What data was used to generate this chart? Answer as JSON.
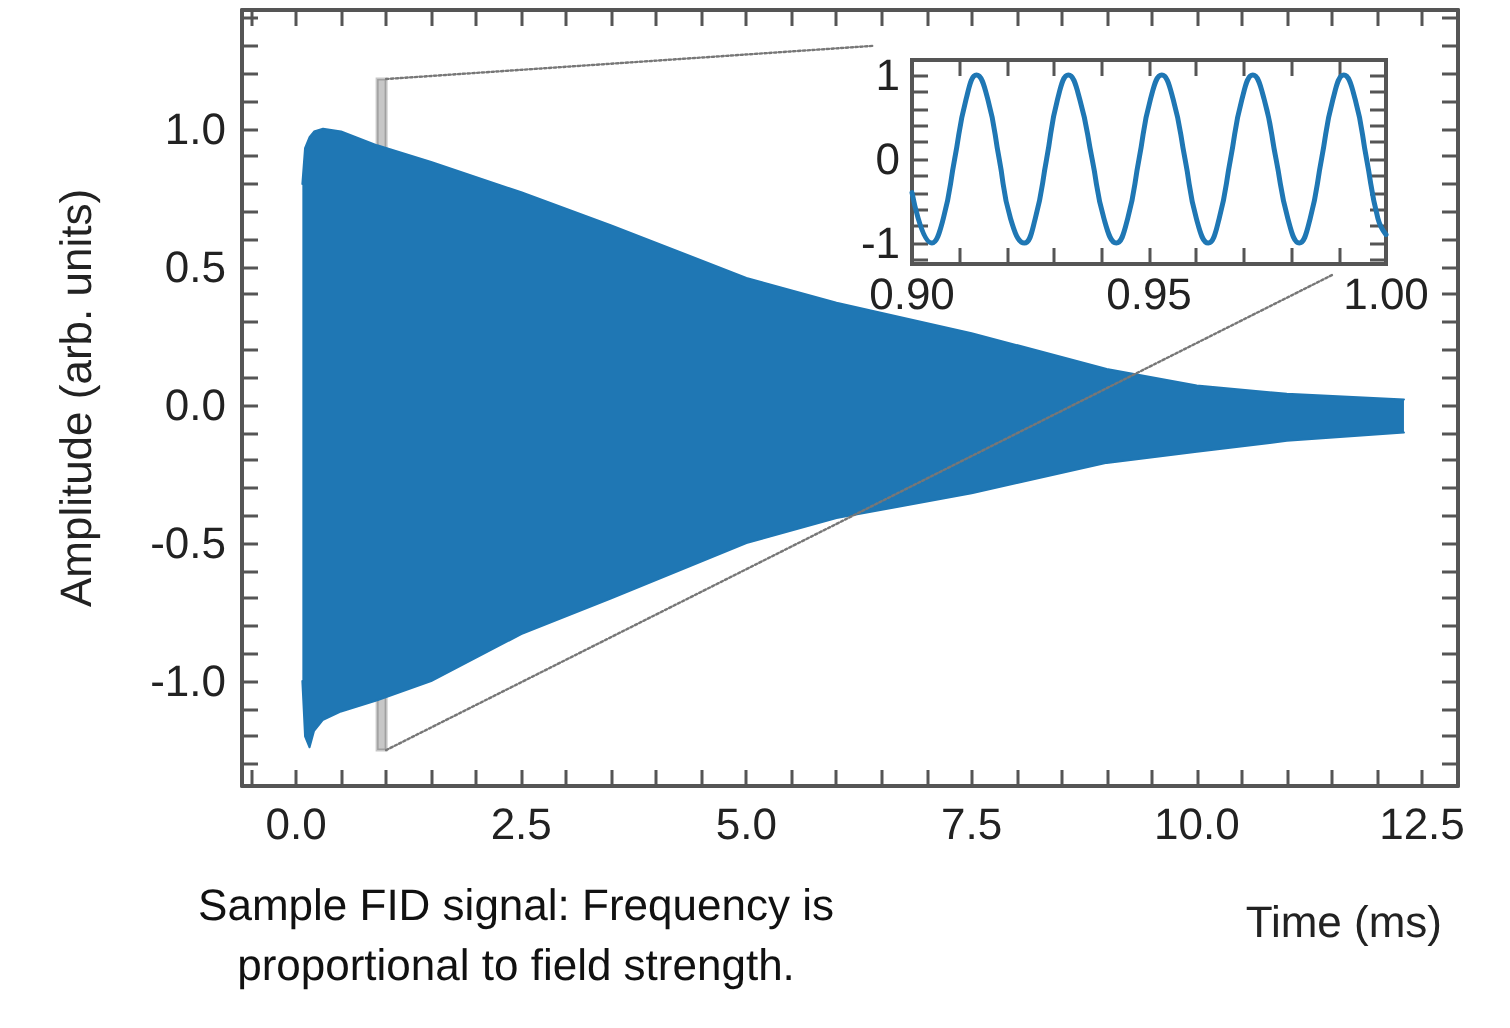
{
  "chart_data": [
    {
      "type": "area",
      "xlabel": "Time (ms)",
      "ylabel": "Amplitude (arb. units)",
      "annotations": [
        "Sample FID signal: Frequency is proportional to field strength."
      ],
      "x": [
        0.07,
        0.1,
        0.15,
        0.2,
        0.3,
        0.5,
        0.9,
        1.5,
        2.5,
        3.5,
        5.0,
        6.0,
        7.5,
        9.0,
        10.0,
        11.0,
        12.3
      ],
      "series": [
        {
          "color": "#1f77b4",
          "values": [
            0.8,
            0.93,
            0.97,
            0.99,
            1.0,
            0.99,
            0.94,
            0.88,
            0.77,
            0.65,
            0.46,
            0.37,
            0.26,
            0.13,
            0.07,
            0.04,
            0.02
          ]
        },
        {
          "color": "#1f77b4",
          "values": [
            -1.0,
            -1.2,
            -1.24,
            -1.18,
            -1.14,
            -1.11,
            -1.07,
            -1.0,
            -0.83,
            -0.7,
            -0.5,
            -0.41,
            -0.32,
            -0.21,
            -0.17,
            -0.13,
            -0.1
          ]
        },
        {
          "type": "line",
          "line_style": "dotted",
          "color": "#777777",
          "x": [
            1.0,
            6.4
          ],
          "values": [
            1.18,
            1.3
          ]
        },
        {
          "type": "line",
          "line_style": "dotted",
          "color": "#777777",
          "x": [
            1.0,
            11.5
          ],
          "values": [
            -1.25,
            0.47
          ]
        }
      ],
      "bands": [
        {
          "axis": "x",
          "from": 0.9,
          "to": 1.0,
          "color": "#444444"
        }
      ],
      "xlim": [
        -0.6,
        12.9
      ],
      "ylim": [
        -1.38,
        1.43
      ],
      "xticks": [
        {
          "value": -0.5,
          "label": null
        },
        {
          "value": 0,
          "label": "0.0"
        },
        {
          "value": 0.5,
          "label": null
        },
        {
          "value": 1,
          "label": null
        },
        {
          "value": 1.5,
          "label": null
        },
        {
          "value": 2,
          "label": null
        },
        {
          "value": 2.5,
          "label": "2.5"
        },
        {
          "value": 3,
          "label": null
        },
        {
          "value": 3.5,
          "label": null
        },
        {
          "value": 4,
          "label": null
        },
        {
          "value": 4.5,
          "label": null
        },
        {
          "value": 5,
          "label": "5.0"
        },
        {
          "value": 5.5,
          "label": null
        },
        {
          "value": 6,
          "label": null
        },
        {
          "value": 6.5,
          "label": null
        },
        {
          "value": 7,
          "label": null
        },
        {
          "value": 7.5,
          "label": "7.5"
        },
        {
          "value": 8,
          "label": null
        },
        {
          "value": 8.5,
          "label": null
        },
        {
          "value": 9,
          "label": null
        },
        {
          "value": 9.5,
          "label": null
        },
        {
          "value": 10,
          "label": "10.0"
        },
        {
          "value": 10.5,
          "label": null
        },
        {
          "value": 11,
          "label": null
        },
        {
          "value": 11.5,
          "label": null
        },
        {
          "value": 12,
          "label": null
        },
        {
          "value": 12.5,
          "label": "12.5"
        }
      ],
      "yticks": [
        {
          "value": -1.3,
          "label": null
        },
        {
          "value": -1.2,
          "label": null
        },
        {
          "value": -1.1,
          "label": null
        },
        {
          "value": -1,
          "label": "-1.0"
        },
        {
          "value": -0.9,
          "label": null
        },
        {
          "value": -0.8,
          "label": null
        },
        {
          "value": -0.7,
          "label": null
        },
        {
          "value": -0.6,
          "label": null
        },
        {
          "value": -0.5,
          "label": "-0.5"
        },
        {
          "value": -0.4,
          "label": null
        },
        {
          "value": -0.3,
          "label": null
        },
        {
          "value": -0.2,
          "label": null
        },
        {
          "value": -0.1,
          "label": null
        },
        {
          "value": 0,
          "label": "0.0"
        },
        {
          "value": 0.1,
          "label": null
        },
        {
          "value": 0.2,
          "label": null
        },
        {
          "value": 0.3,
          "label": null
        },
        {
          "value": 0.4,
          "label": null
        },
        {
          "value": 0.5,
          "label": "0.5"
        },
        {
          "value": 0.6,
          "label": null
        },
        {
          "value": 0.7,
          "label": null
        },
        {
          "value": 0.8,
          "label": null
        },
        {
          "value": 0.9,
          "label": null
        },
        {
          "value": 1,
          "label": "1.0"
        },
        {
          "value": 1.1,
          "label": null
        },
        {
          "value": 1.2,
          "label": null
        },
        {
          "value": 1.3,
          "label": null
        },
        {
          "value": 1.4,
          "label": null
        }
      ]
    },
    {
      "type": "line",
      "marker": "none",
      "color": "#1f77b4",
      "x": [
        0.9,
        0.9042,
        0.9066,
        0.909,
        0.9114,
        0.9136,
        0.916,
        0.9184,
        0.9208,
        0.9237,
        0.926,
        0.9284,
        0.9307,
        0.933,
        0.9354,
        0.938,
        0.9405,
        0.9431,
        0.9455,
        0.9479,
        0.9503,
        0.9527,
        0.9551,
        0.9576,
        0.96,
        0.9625,
        0.9648,
        0.9672,
        0.9696,
        0.9719,
        0.9743,
        0.9768,
        0.9793,
        0.9817,
        0.984,
        0.9864,
        0.9888,
        0.9911,
        0.9935,
        0.9959,
        0.9983,
        1.0
      ],
      "values": [
        -0.4,
        -1,
        -0.71,
        0,
        0.71,
        1,
        0.71,
        0,
        -0.71,
        -1,
        -0.71,
        0,
        0.71,
        1,
        0.71,
        0,
        -0.71,
        -1,
        -0.71,
        0,
        0.71,
        1,
        0.71,
        0,
        -0.71,
        -1,
        -0.71,
        0,
        0.71,
        1,
        0.71,
        0,
        -0.71,
        -1,
        -0.71,
        0,
        0.71,
        1,
        0.71,
        0,
        -0.71,
        -0.9
      ],
      "xlim": [
        0.9,
        1.0
      ],
      "ylim": [
        -1.25,
        1.18
      ],
      "xticks": [
        {
          "value": 0.9,
          "label": "0.90"
        },
        {
          "value": 0.91,
          "label": null
        },
        {
          "value": 0.92,
          "label": null
        },
        {
          "value": 0.93,
          "label": null
        },
        {
          "value": 0.94,
          "label": null
        },
        {
          "value": 0.95,
          "label": "0.95"
        },
        {
          "value": 0.96,
          "label": null
        },
        {
          "value": 0.97,
          "label": null
        },
        {
          "value": 0.98,
          "label": null
        },
        {
          "value": 0.99,
          "label": null
        },
        {
          "value": 1.0,
          "label": "1.00"
        }
      ],
      "yticks": [
        {
          "value": -1.2,
          "label": null
        },
        -1,
        {
          "value": -0.8,
          "label": null
        },
        {
          "value": -0.6,
          "label": null
        },
        {
          "value": -0.4,
          "label": null
        },
        {
          "value": -0.2,
          "label": null
        },
        0,
        {
          "value": 0.2,
          "label": null
        },
        {
          "value": 0.4,
          "label": null
        },
        {
          "value": 0.6,
          "label": null
        },
        {
          "value": 0.8,
          "label": null
        },
        1
      ]
    }
  ]
}
